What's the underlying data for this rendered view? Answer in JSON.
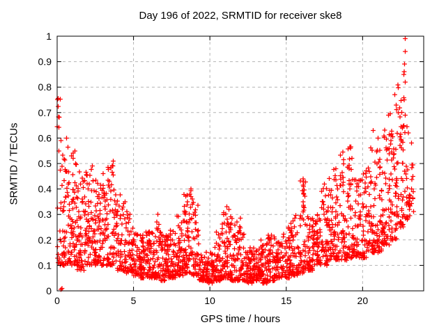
{
  "window": {
    "background": "#ffffff"
  },
  "colors": {
    "marker": "#ff0000",
    "grid": "#b4b4b4",
    "axis": "#000000",
    "text": "#000000",
    "background": "#ffffff"
  },
  "chart_data": {
    "type": "scatter",
    "title": "Day 196 of 2022, SRMTID for receiver ske8",
    "xlabel": "GPS time / hours",
    "ylabel": "SRMTID / TECUs",
    "xlim": [
      0,
      24
    ],
    "ylim": [
      0,
      1
    ],
    "xticks": [
      0,
      5,
      10,
      15,
      20
    ],
    "xtick_labels": [
      "0",
      "5",
      "10",
      "15",
      "20"
    ],
    "yticks": [
      0,
      0.1,
      0.2,
      0.3,
      0.4,
      0.5,
      0.6,
      0.7,
      0.8,
      0.9,
      1
    ],
    "ytick_labels": [
      "0",
      "0.1",
      "0.2",
      "0.3",
      "0.4",
      "0.5",
      "0.6",
      "0.7",
      "0.8",
      "0.9",
      "1"
    ],
    "grid": true,
    "grid_style": "dashed",
    "legend": "none",
    "marker": "plus",
    "marker_color": "#ff0000",
    "seed": 20220196,
    "notable_points": [
      [
        0.07,
        0.755
      ],
      [
        0.07,
        0.724
      ],
      [
        0.1,
        0.683
      ],
      [
        0.12,
        0.642
      ],
      [
        0.25,
        0.005
      ],
      [
        0.32,
        0.01
      ],
      [
        1.05,
        0.52
      ],
      [
        2.3,
        0.49
      ],
      [
        3.0,
        0.46
      ],
      [
        3.67,
        0.51
      ],
      [
        3.67,
        0.455
      ],
      [
        6.6,
        0.3
      ],
      [
        8.77,
        0.4
      ],
      [
        8.7,
        0.38
      ],
      [
        8.85,
        0.36
      ],
      [
        10.9,
        0.3
      ],
      [
        11.1,
        0.33
      ],
      [
        12.0,
        0.285
      ],
      [
        16.1,
        0.44
      ],
      [
        16.1,
        0.415
      ],
      [
        16.15,
        0.38
      ],
      [
        16.1,
        0.35
      ],
      [
        16.1,
        0.31
      ],
      [
        17.5,
        0.42
      ],
      [
        19.2,
        0.56
      ],
      [
        19.3,
        0.52
      ],
      [
        20.7,
        0.63
      ],
      [
        21.0,
        0.6
      ],
      [
        21.7,
        0.69
      ],
      [
        22.1,
        0.77
      ],
      [
        22.2,
        0.73
      ],
      [
        22.8,
        0.99
      ],
      [
        22.8,
        0.94
      ],
      [
        22.7,
        0.85
      ],
      [
        22.8,
        0.82
      ],
      [
        22.8,
        0.69
      ],
      [
        22.9,
        0.645
      ],
      [
        23.0,
        0.62
      ],
      [
        22.6,
        0.64
      ],
      [
        22.5,
        0.615
      ],
      [
        23.2,
        0.4
      ],
      [
        23.3,
        0.45
      ]
    ],
    "density_bins": [
      [
        0.0,
        0.3,
        22,
        0.1,
        0.77,
        2.2
      ],
      [
        0.3,
        0.8,
        55,
        0.1,
        0.6,
        1.8
      ],
      [
        0.8,
        1.3,
        60,
        0.1,
        0.55,
        1.6
      ],
      [
        1.3,
        1.8,
        55,
        0.08,
        0.5,
        1.6
      ],
      [
        1.8,
        2.3,
        60,
        0.1,
        0.48,
        1.5
      ],
      [
        2.3,
        2.8,
        60,
        0.1,
        0.44,
        1.5
      ],
      [
        2.8,
        3.3,
        55,
        0.1,
        0.42,
        1.5
      ],
      [
        3.3,
        3.8,
        50,
        0.1,
        0.5,
        1.8
      ],
      [
        3.8,
        4.3,
        48,
        0.08,
        0.38,
        1.7
      ],
      [
        4.3,
        4.8,
        45,
        0.07,
        0.35,
        1.8
      ],
      [
        4.8,
        5.3,
        50,
        0.06,
        0.26,
        1.7
      ],
      [
        5.3,
        5.8,
        55,
        0.05,
        0.22,
        1.6
      ],
      [
        5.8,
        6.3,
        55,
        0.05,
        0.24,
        1.7
      ],
      [
        6.3,
        6.8,
        52,
        0.05,
        0.28,
        1.8
      ],
      [
        6.8,
        7.3,
        55,
        0.04,
        0.22,
        1.6
      ],
      [
        7.3,
        7.8,
        55,
        0.05,
        0.24,
        1.7
      ],
      [
        7.8,
        8.3,
        55,
        0.06,
        0.3,
        1.8
      ],
      [
        8.3,
        8.8,
        60,
        0.07,
        0.4,
        1.7
      ],
      [
        8.8,
        9.3,
        55,
        0.06,
        0.35,
        1.9
      ],
      [
        9.3,
        9.8,
        50,
        0.04,
        0.16,
        1.5
      ],
      [
        9.8,
        10.3,
        55,
        0.03,
        0.15,
        1.4
      ],
      [
        10.3,
        10.8,
        55,
        0.04,
        0.24,
        1.8
      ],
      [
        10.8,
        11.3,
        58,
        0.05,
        0.33,
        1.9
      ],
      [
        11.3,
        11.8,
        55,
        0.04,
        0.3,
        1.9
      ],
      [
        11.8,
        12.3,
        52,
        0.04,
        0.28,
        1.9
      ],
      [
        12.3,
        12.8,
        55,
        0.03,
        0.17,
        1.5
      ],
      [
        12.8,
        13.3,
        55,
        0.04,
        0.17,
        1.5
      ],
      [
        13.3,
        13.8,
        55,
        0.03,
        0.2,
        1.6
      ],
      [
        13.8,
        14.3,
        50,
        0.04,
        0.22,
        1.7
      ],
      [
        14.3,
        14.8,
        50,
        0.05,
        0.2,
        1.6
      ],
      [
        14.8,
        15.3,
        50,
        0.05,
        0.25,
        1.7
      ],
      [
        15.3,
        15.8,
        50,
        0.06,
        0.3,
        1.8
      ],
      [
        15.8,
        16.3,
        52,
        0.07,
        0.44,
        2.0
      ],
      [
        16.3,
        16.8,
        50,
        0.08,
        0.3,
        1.6
      ],
      [
        16.8,
        17.3,
        50,
        0.1,
        0.32,
        1.6
      ],
      [
        17.3,
        17.8,
        50,
        0.1,
        0.45,
        1.8
      ],
      [
        17.8,
        18.3,
        55,
        0.12,
        0.5,
        1.8
      ],
      [
        18.3,
        18.8,
        55,
        0.12,
        0.55,
        1.8
      ],
      [
        18.8,
        19.3,
        52,
        0.12,
        0.58,
        1.9
      ],
      [
        19.3,
        19.8,
        50,
        0.13,
        0.45,
        1.6
      ],
      [
        19.8,
        20.3,
        50,
        0.13,
        0.5,
        1.7
      ],
      [
        20.3,
        20.8,
        50,
        0.15,
        0.62,
        1.8
      ],
      [
        20.8,
        21.3,
        55,
        0.15,
        0.6,
        1.7
      ],
      [
        21.3,
        21.8,
        55,
        0.18,
        0.65,
        1.7
      ],
      [
        21.8,
        22.3,
        55,
        0.2,
        0.77,
        1.8
      ],
      [
        22.3,
        22.8,
        50,
        0.25,
        0.9,
        1.8
      ],
      [
        22.8,
        23.4,
        35,
        0.28,
        0.6,
        1.5
      ]
    ]
  }
}
